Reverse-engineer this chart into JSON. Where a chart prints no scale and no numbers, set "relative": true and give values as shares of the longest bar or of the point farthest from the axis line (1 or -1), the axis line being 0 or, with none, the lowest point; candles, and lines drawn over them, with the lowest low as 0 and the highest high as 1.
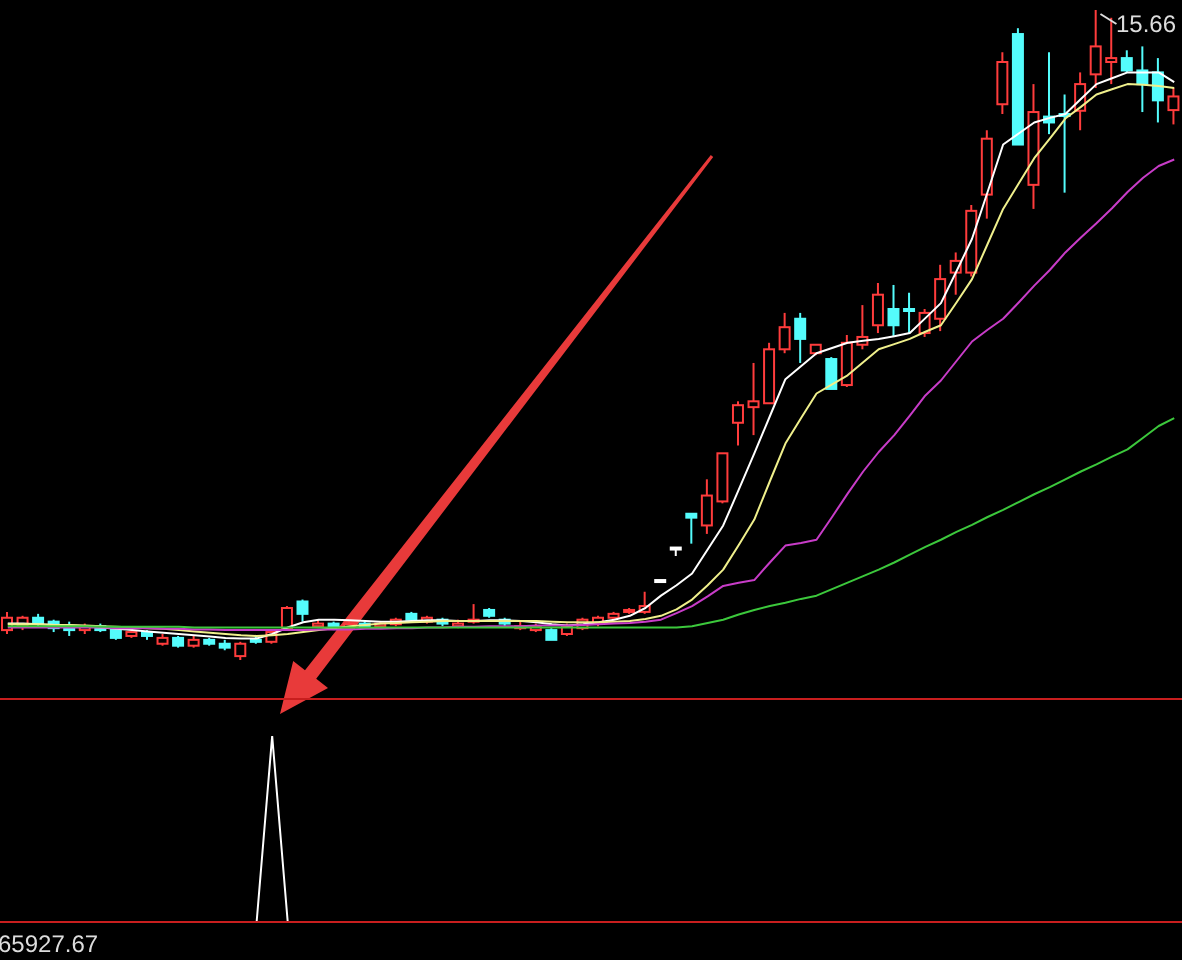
{
  "chart_data": [
    {
      "type": "candlestick",
      "relative": true,
      "annotations": [
        "15.66"
      ],
      "categories": [
        null,
        null,
        null,
        null,
        null,
        null,
        null,
        null,
        null,
        null,
        null,
        null,
        null,
        null,
        null,
        null,
        null,
        null,
        null,
        null,
        null,
        null,
        null,
        null,
        null,
        null,
        null,
        null,
        null,
        null,
        null,
        null,
        null,
        null,
        null,
        null,
        null,
        null,
        null,
        null,
        null,
        null,
        null,
        null,
        null,
        null,
        null,
        null,
        null,
        null,
        null,
        null,
        null,
        null,
        null,
        null,
        null,
        null,
        null,
        null,
        null,
        null,
        null,
        null,
        null,
        null,
        null,
        null,
        null,
        null,
        null,
        null,
        null,
        null,
        null,
        null
      ],
      "ohlc": [
        [
          0.046,
          0.074,
          0.04,
          0.065
        ],
        [
          0.052,
          0.068,
          0.046,
          0.065
        ],
        [
          0.065,
          0.071,
          0.052,
          0.056
        ],
        [
          0.059,
          0.062,
          0.043,
          0.049
        ],
        [
          0.052,
          0.059,
          0.037,
          0.046
        ],
        [
          0.046,
          0.056,
          0.04,
          0.052
        ],
        [
          0.052,
          0.056,
          0.043,
          0.046
        ],
        [
          0.046,
          0.049,
          0.031,
          0.034
        ],
        [
          0.037,
          0.049,
          0.034,
          0.043
        ],
        [
          0.043,
          0.046,
          0.031,
          0.037
        ],
        [
          0.025,
          0.04,
          0.022,
          0.034
        ],
        [
          0.034,
          0.037,
          0.019,
          0.022
        ],
        [
          0.022,
          0.037,
          0.019,
          0.031
        ],
        [
          0.031,
          0.034,
          0.022,
          0.025
        ],
        [
          0.025,
          0.031,
          0.015,
          0.019
        ],
        [
          0.006,
          0.028,
          0.0,
          0.025
        ],
        [
          0.031,
          0.037,
          0.025,
          0.028
        ],
        [
          0.028,
          0.046,
          0.025,
          0.043
        ],
        [
          0.049,
          0.083,
          0.046,
          0.08
        ],
        [
          0.09,
          0.093,
          0.059,
          0.071
        ],
        [
          0.052,
          0.062,
          0.049,
          0.056
        ],
        [
          0.056,
          0.059,
          0.046,
          0.052
        ],
        [
          0.049,
          0.059,
          0.046,
          0.055
        ],
        [
          0.056,
          0.059,
          0.049,
          0.052
        ],
        [
          0.052,
          0.059,
          0.049,
          0.056
        ],
        [
          0.055,
          0.065,
          0.052,
          0.062
        ],
        [
          0.071,
          0.074,
          0.059,
          0.062
        ],
        [
          0.059,
          0.068,
          0.056,
          0.065
        ],
        [
          0.062,
          0.065,
          0.052,
          0.056
        ],
        [
          0.052,
          0.062,
          0.049,
          0.056
        ],
        [
          0.059,
          0.086,
          0.056,
          0.062
        ],
        [
          0.077,
          0.08,
          0.065,
          0.068
        ],
        [
          0.062,
          0.065,
          0.052,
          0.056
        ],
        [
          0.049,
          0.059,
          0.046,
          0.052
        ],
        [
          0.046,
          0.056,
          0.043,
          0.052
        ],
        [
          0.046,
          0.049,
          0.031,
          0.031
        ],
        [
          0.04,
          0.056,
          0.037,
          0.052
        ],
        [
          0.049,
          0.065,
          0.046,
          0.062
        ],
        [
          0.056,
          0.068,
          0.052,
          0.065
        ],
        [
          0.065,
          0.074,
          0.062,
          0.071
        ],
        [
          0.074,
          0.08,
          0.071,
          0.077
        ],
        [
          0.074,
          0.105,
          0.071,
          0.083
        ],
        [
          0.123,
          0.123,
          0.123,
          0.123
        ],
        [
          0.173,
          0.173,
          0.16,
          0.173
        ],
        [
          0.225,
          0.225,
          0.179,
          0.219
        ],
        [
          0.207,
          0.278,
          0.194,
          0.253
        ],
        [
          0.244,
          0.318,
          0.241,
          0.318
        ],
        [
          0.365,
          0.398,
          0.33,
          0.392
        ],
        [
          0.389,
          0.457,
          0.346,
          0.398
        ],
        [
          0.395,
          0.488,
          0.395,
          0.478
        ],
        [
          0.478,
          0.534,
          0.472,
          0.512
        ],
        [
          0.525,
          0.534,
          0.457,
          0.494
        ],
        [
          0.472,
          0.485,
          0.469,
          0.485
        ],
        [
          0.463,
          0.466,
          0.417,
          0.417
        ],
        [
          0.423,
          0.5,
          0.42,
          0.488
        ],
        [
          0.485,
          0.546,
          0.478,
          0.497
        ],
        [
          0.515,
          0.58,
          0.503,
          0.562
        ],
        [
          0.54,
          0.577,
          0.497,
          0.515
        ],
        [
          0.54,
          0.565,
          0.503,
          0.54
        ],
        [
          0.503,
          0.54,
          0.497,
          0.534
        ],
        [
          0.525,
          0.608,
          0.506,
          0.586
        ],
        [
          0.596,
          0.627,
          0.562,
          0.614
        ],
        [
          0.596,
          0.7,
          0.59,
          0.691
        ],
        [
          0.716,
          0.815,
          0.679,
          0.802
        ],
        [
          0.855,
          0.935,
          0.84,
          0.92
        ],
        [
          0.963,
          0.972,
          0.793,
          0.793
        ],
        [
          0.731,
          0.886,
          0.694,
          0.843
        ],
        [
          0.836,
          0.935,
          0.809,
          0.827
        ],
        [
          0.84,
          0.87,
          0.719,
          0.84
        ],
        [
          0.845,
          0.904,
          0.815,
          0.886
        ],
        [
          0.901,
          1,
          0.88,
          0.944
        ],
        [
          0.92,
          0.988,
          0.886,
          0.926
        ],
        [
          0.926,
          0.938,
          0.904,
          0.907
        ],
        [
          0.907,
          0.944,
          0.843,
          0.886
        ],
        [
          0.904,
          0.926,
          0.827,
          0.861
        ],
        [
          0.846,
          0.88,
          0.824,
          0.867
        ]
      ],
      "colors": [
        "#ff3c3c",
        "#ff3c3c",
        "#54fcfc",
        "#54fcfc",
        "#54fcfc",
        "#ff3c3c",
        "#54fcfc",
        "#54fcfc",
        "#ff3c3c",
        "#54fcfc",
        "#ff3c3c",
        "#54fcfc",
        "#ff3c3c",
        "#54fcfc",
        "#54fcfc",
        "#ff3c3c",
        "#54fcfc",
        "#ff3c3c",
        "#ff3c3c",
        "#54fcfc",
        "#ff3c3c",
        "#54fcfc",
        "#ff3c3c",
        "#54fcfc",
        "#ff3c3c",
        "#ff3c3c",
        "#54fcfc",
        "#ff3c3c",
        "#54fcfc",
        "#ff3c3c",
        "#ff3c3c",
        "#54fcfc",
        "#54fcfc",
        "#ff3c3c",
        "#ff3c3c",
        "#54fcfc",
        "#ff3c3c",
        "#ff3c3c",
        "#ff3c3c",
        "#ff3c3c",
        "#ff3c3c",
        "#ff3c3c",
        "#ffffff",
        "#ffffff",
        "#54fcfc",
        "#ff3c3c",
        "#ff3c3c",
        "#ff3c3c",
        "#ff3c3c",
        "#ff3c3c",
        "#ff3c3c",
        "#54fcfc",
        "#ff3c3c",
        "#54fcfc",
        "#ff3c3c",
        "#ff3c3c",
        "#ff3c3c",
        "#54fcfc",
        "#54fcfc",
        "#ff3c3c",
        "#ff3c3c",
        "#ff3c3c",
        "#ff3c3c",
        "#ff3c3c",
        "#ff3c3c",
        "#54fcfc",
        "#ff3c3c",
        "#54fcfc",
        "#54fcfc",
        "#ff3c3c",
        "#ff3c3c",
        "#ff3c3c",
        "#54fcfc",
        "#54fcfc",
        "#54fcfc",
        "#ff3c3c"
      ],
      "series": [
        {
          "type": "line",
          "color": "#ffffff",
          "values": [
            0.056,
            0.056,
            0.055,
            0.054,
            0.053,
            0.052,
            0.05,
            0.048,
            0.046,
            0.044,
            0.042,
            0.04,
            0.038,
            0.036,
            0.034,
            0.033,
            0.033,
            0.04,
            0.05,
            0.058,
            0.062,
            0.062,
            0.061,
            0.06,
            0.059,
            0.059,
            0.06,
            0.061,
            0.061,
            0.06,
            0.06,
            0.061,
            0.061,
            0.06,
            0.058,
            0.055,
            0.053,
            0.055,
            0.058,
            0.062,
            0.068,
            0.08,
            0.099,
            0.115,
            0.133,
            0.17,
            0.207,
            0.262,
            0.318,
            0.375,
            0.432,
            0.452,
            0.472,
            0.48,
            0.488,
            0.491,
            0.494,
            0.498,
            0.503,
            0.526,
            0.549,
            0.598,
            0.648,
            0.72,
            0.793,
            0.81,
            0.827,
            0.834,
            0.84,
            0.863,
            0.886,
            0.895,
            0.904,
            0.904,
            0.904,
            0.889
          ]
        },
        {
          "type": "line",
          "color": "#f0f08c",
          "values": [
            0.055,
            0.055,
            0.055,
            0.054,
            0.054,
            0.053,
            0.052,
            0.051,
            0.05,
            0.049,
            0.048,
            0.046,
            0.044,
            0.042,
            0.04,
            0.038,
            0.037,
            0.038,
            0.04,
            0.043,
            0.046,
            0.049,
            0.052,
            0.054,
            0.056,
            0.057,
            0.058,
            0.059,
            0.06,
            0.06,
            0.06,
            0.06,
            0.06,
            0.06,
            0.06,
            0.059,
            0.058,
            0.058,
            0.058,
            0.059,
            0.06,
            0.063,
            0.068,
            0.078,
            0.093,
            0.115,
            0.139,
            0.177,
            0.216,
            0.275,
            0.333,
            0.372,
            0.41,
            0.424,
            0.438,
            0.458,
            0.478,
            0.486,
            0.494,
            0.505,
            0.515,
            0.55,
            0.586,
            0.64,
            0.694,
            0.733,
            0.772,
            0.802,
            0.833,
            0.851,
            0.87,
            0.878,
            0.886,
            0.885,
            0.883,
            0.88
          ]
        },
        {
          "type": "line",
          "color": "#c83cc8",
          "values": [
            0.05,
            0.05,
            0.05,
            0.05,
            0.05,
            0.05,
            0.05,
            0.049,
            0.049,
            0.049,
            0.048,
            0.048,
            0.047,
            0.047,
            0.046,
            0.046,
            0.046,
            0.046,
            0.046,
            0.046,
            0.047,
            0.047,
            0.047,
            0.048,
            0.048,
            0.049,
            0.049,
            0.05,
            0.05,
            0.051,
            0.051,
            0.052,
            0.052,
            0.052,
            0.053,
            0.053,
            0.053,
            0.054,
            0.055,
            0.056,
            0.057,
            0.059,
            0.062,
            0.072,
            0.083,
            0.098,
            0.114,
            0.119,
            0.123,
            0.15,
            0.176,
            0.18,
            0.185,
            0.22,
            0.256,
            0.29,
            0.32,
            0.346,
            0.376,
            0.407,
            0.43,
            0.46,
            0.49,
            0.508,
            0.525,
            0.55,
            0.576,
            0.6,
            0.627,
            0.65,
            0.672,
            0.695,
            0.72,
            0.742,
            0.76,
            0.77
          ]
        },
        {
          "type": "line",
          "color": "#3cc83c",
          "values": [
            0.052,
            0.052,
            0.052,
            0.052,
            0.052,
            0.052,
            0.051,
            0.051,
            0.051,
            0.051,
            0.051,
            0.051,
            0.05,
            0.05,
            0.05,
            0.05,
            0.05,
            0.05,
            0.05,
            0.05,
            0.05,
            0.05,
            0.05,
            0.05,
            0.05,
            0.05,
            0.05,
            0.05,
            0.05,
            0.05,
            0.05,
            0.05,
            0.05,
            0.05,
            0.05,
            0.05,
            0.05,
            0.05,
            0.05,
            0.05,
            0.05,
            0.05,
            0.05,
            0.05,
            0.052,
            0.057,
            0.062,
            0.07,
            0.077,
            0.083,
            0.088,
            0.094,
            0.099,
            0.109,
            0.119,
            0.129,
            0.139,
            0.15,
            0.162,
            0.174,
            0.185,
            0.197,
            0.208,
            0.22,
            0.231,
            0.243,
            0.255,
            0.266,
            0.278,
            0.29,
            0.301,
            0.313,
            0.324,
            0.342,
            0.36,
            0.372
          ]
        }
      ]
    },
    {
      "type": "line",
      "relative": true,
      "annotations": [
        "65927.67"
      ],
      "categories": [
        null,
        null,
        null,
        null,
        null,
        null,
        null,
        null,
        null,
        null,
        null,
        null,
        null,
        null,
        null,
        null,
        null,
        null,
        null,
        null,
        null,
        null,
        null,
        null,
        null,
        null,
        null,
        null,
        null,
        null,
        null,
        null,
        null,
        null,
        null,
        null,
        null,
        null,
        null,
        null,
        null,
        null,
        null,
        null,
        null,
        null,
        null,
        null,
        null,
        null,
        null,
        null,
        null,
        null,
        null,
        null,
        null,
        null,
        null,
        null,
        null,
        null,
        null,
        null,
        null,
        null,
        null,
        null,
        null,
        null,
        null,
        null,
        null,
        null,
        null,
        null
      ],
      "series": [
        {
          "color": "#ffffff",
          "values": [
            null,
            null,
            null,
            null,
            null,
            null,
            null,
            null,
            null,
            null,
            null,
            null,
            null,
            null,
            null,
            null,
            0,
            1,
            0,
            null,
            null,
            null,
            null,
            null,
            null,
            null,
            null,
            null,
            null,
            null,
            null,
            null,
            null,
            null,
            null,
            null,
            null,
            null,
            null,
            null,
            null,
            null,
            null,
            null,
            null,
            null,
            null,
            null,
            null,
            null,
            null,
            null,
            null,
            null,
            null,
            null,
            null,
            null,
            null,
            null,
            null,
            null,
            null,
            null,
            null,
            null,
            null,
            null,
            null,
            null,
            null,
            null,
            null,
            null,
            null,
            null
          ]
        }
      ]
    }
  ]
}
